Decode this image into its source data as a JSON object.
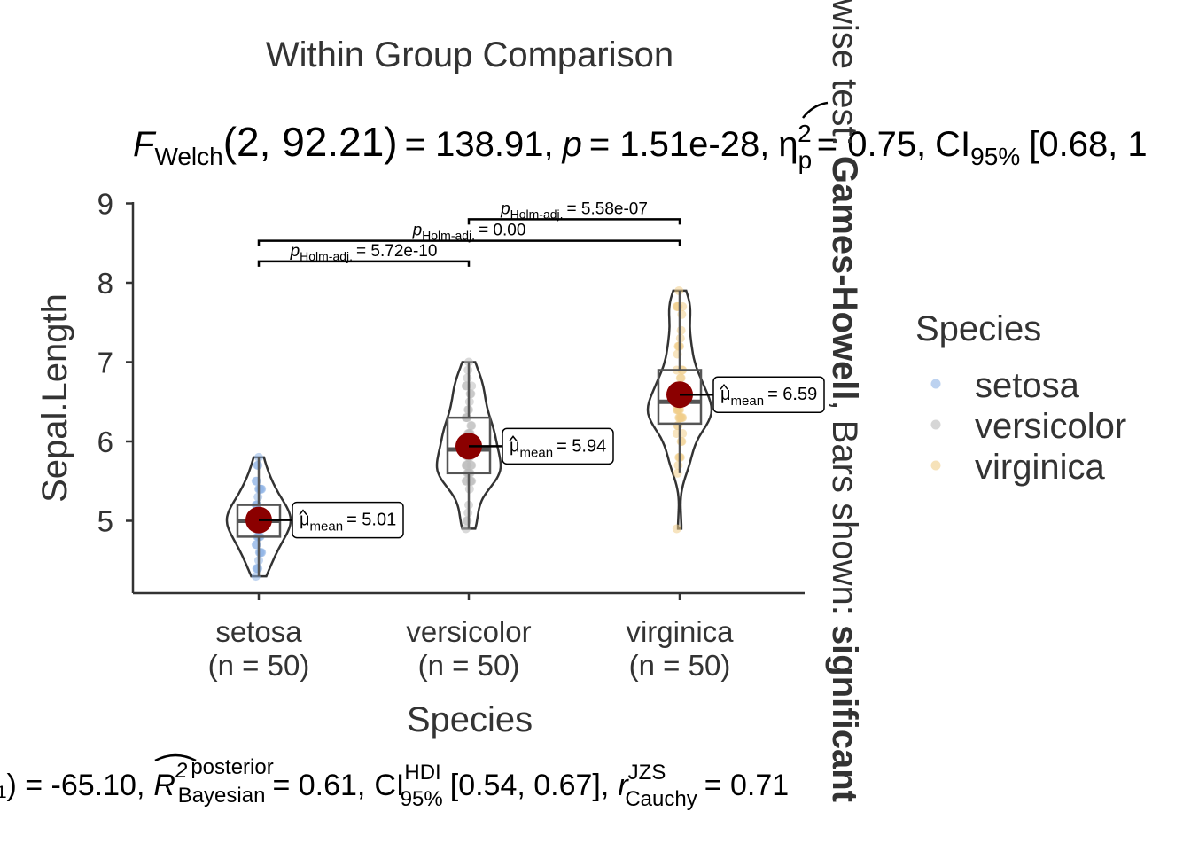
{
  "chart_data": {
    "type": "violin",
    "title": "Within Group Comparison",
    "subtitle": {
      "F": "F",
      "F_sub": "Welch",
      "stat_args": "(2, 92.21)",
      "stat_value": "= 138.91,",
      "p": "p",
      "p_value": "= 1.51e-28,",
      "eta": "η",
      "eta_sub": "p",
      "eta_sup": "2",
      "eta_value": "= 0.75,",
      "ci": "CI",
      "ci_sub": "95%",
      "ci_value": "[0.68, 1"
    },
    "caption": {
      "lead": "₁) = -65.10,",
      "r2": "R",
      "r2_sup": "2",
      "r2_sup2": "posterior",
      "r2_sub": "Bayesian",
      "r2_value": "= 0.61,",
      "ci": "CI",
      "ci_sup": "HDI",
      "ci_sub": "95%",
      "ci_value": "[0.54, 0.67],",
      "r": "r",
      "r_sup": "JZS",
      "r_sub": "Cauchy",
      "r_value": "= 0.71"
    },
    "side_caption": {
      "part1": "wise test: ",
      "part2": "Games-Howell",
      "part3": ", Bars shown: ",
      "part4": "significant"
    },
    "xlabel": "Species",
    "ylabel": "Sepal.Length",
    "ylim": [
      4.1,
      9.0
    ],
    "yticks": [
      5,
      6,
      7,
      8,
      9
    ],
    "categories": [
      "setosa",
      "versicolor",
      "virginica"
    ],
    "category_counts": [
      "(n = 50)",
      "(n = 50)",
      "(n = 50)"
    ],
    "legend": {
      "title": "Species",
      "position": "right",
      "entries": [
        "setosa",
        "versicolor",
        "virginica"
      ]
    },
    "colors": {
      "setosa": "#8fb4e6",
      "versicolor": "#bbbbbb",
      "virginica": "#f0ce8a",
      "mean": "#8b0000"
    },
    "series": [
      {
        "name": "setosa",
        "mean": 5.01,
        "mean_label": "= 5.01",
        "box": {
          "min": 4.3,
          "q1": 4.8,
          "median": 5.0,
          "q3": 5.2,
          "max": 5.8
        },
        "points": [
          4.3,
          4.4,
          4.4,
          4.4,
          4.5,
          4.6,
          4.6,
          4.6,
          4.6,
          4.7,
          4.7,
          4.8,
          4.8,
          4.8,
          4.8,
          4.8,
          4.9,
          4.9,
          4.9,
          4.9,
          5.0,
          5.0,
          5.0,
          5.0,
          5.0,
          5.0,
          5.0,
          5.0,
          5.1,
          5.1,
          5.1,
          5.1,
          5.1,
          5.1,
          5.1,
          5.1,
          5.2,
          5.2,
          5.2,
          5.3,
          5.4,
          5.4,
          5.4,
          5.4,
          5.4,
          5.5,
          5.5,
          5.7,
          5.7,
          5.8
        ]
      },
      {
        "name": "versicolor",
        "mean": 5.94,
        "mean_label": "= 5.94",
        "box": {
          "min": 4.9,
          "q1": 5.6,
          "median": 5.9,
          "q3": 6.3,
          "max": 7.0
        },
        "points": [
          4.9,
          5.0,
          5.0,
          5.1,
          5.2,
          5.4,
          5.5,
          5.5,
          5.5,
          5.5,
          5.5,
          5.6,
          5.6,
          5.6,
          5.6,
          5.6,
          5.7,
          5.7,
          5.7,
          5.7,
          5.7,
          5.8,
          5.8,
          5.8,
          5.9,
          5.9,
          6.0,
          6.0,
          6.0,
          6.0,
          6.1,
          6.1,
          6.1,
          6.1,
          6.2,
          6.2,
          6.3,
          6.3,
          6.3,
          6.4,
          6.4,
          6.5,
          6.6,
          6.6,
          6.7,
          6.7,
          6.7,
          6.8,
          6.9,
          7.0
        ]
      },
      {
        "name": "virginica",
        "mean": 6.59,
        "mean_label": "= 6.59",
        "box": {
          "min": 5.6,
          "q1": 6.225,
          "median": 6.5,
          "q3": 6.9,
          "max": 7.9
        },
        "points": [
          4.9,
          5.6,
          5.7,
          5.8,
          5.8,
          5.8,
          6.0,
          6.0,
          6.1,
          6.1,
          6.2,
          6.2,
          6.3,
          6.3,
          6.3,
          6.3,
          6.3,
          6.3,
          6.4,
          6.4,
          6.4,
          6.4,
          6.4,
          6.5,
          6.5,
          6.5,
          6.5,
          6.7,
          6.7,
          6.7,
          6.7,
          6.7,
          6.8,
          6.8,
          6.9,
          6.9,
          6.9,
          7.1,
          7.2,
          7.2,
          7.2,
          7.3,
          7.4,
          7.6,
          7.7,
          7.7,
          7.7,
          7.7,
          7.9,
          6.5
        ]
      }
    ],
    "comparisons": [
      {
        "from": "setosa",
        "to": "versicolor",
        "y": 8.27,
        "p_label": "p",
        "p_sub": "Holm-adj.",
        "p_value": "= 5.72e-10"
      },
      {
        "from": "setosa",
        "to": "virginica",
        "y": 8.53,
        "p_label": "p",
        "p_sub": "Holm-adj.",
        "p_value": "= 0.00"
      },
      {
        "from": "versicolor",
        "to": "virginica",
        "y": 8.8,
        "p_label": "p",
        "p_sub": "Holm-adj.",
        "p_value": "= 5.58e-07"
      }
    ]
  }
}
